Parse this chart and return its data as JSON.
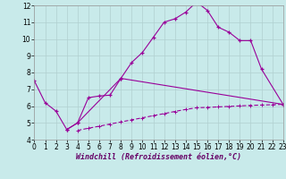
{
  "background_color": "#c8eaea",
  "grid_color": "#b0d0d0",
  "line_color": "#990099",
  "xlim": [
    0,
    23
  ],
  "ylim": [
    4,
    12
  ],
  "xticks": [
    0,
    1,
    2,
    3,
    4,
    5,
    6,
    7,
    8,
    9,
    10,
    11,
    12,
    13,
    14,
    15,
    16,
    17,
    18,
    19,
    20,
    21,
    22,
    23
  ],
  "yticks": [
    4,
    5,
    6,
    7,
    8,
    9,
    10,
    11,
    12
  ],
  "xlabel": "Windchill (Refroidissement éolien,°C)",
  "curve1_x": [
    0,
    1,
    2,
    3,
    4,
    5,
    6,
    7,
    8,
    9,
    10,
    11,
    12,
    13,
    14,
    15,
    16,
    17,
    18,
    19,
    20,
    21,
    23
  ],
  "curve1_y": [
    7.5,
    6.2,
    5.7,
    4.6,
    5.0,
    6.5,
    6.6,
    6.65,
    7.65,
    8.6,
    9.2,
    10.1,
    11.0,
    11.2,
    11.6,
    12.2,
    11.7,
    10.7,
    10.4,
    9.9,
    9.9,
    8.2,
    6.1
  ],
  "curve2_x": [
    3,
    4,
    8,
    23
  ],
  "curve2_y": [
    4.6,
    5.0,
    7.65,
    6.1
  ],
  "curve3_x": [
    4,
    5,
    6,
    7,
    8,
    9,
    10,
    11,
    12,
    13,
    14,
    15,
    16,
    17,
    18,
    19,
    20,
    21,
    22,
    23
  ],
  "curve3_y": [
    4.55,
    4.68,
    4.8,
    4.93,
    5.05,
    5.18,
    5.3,
    5.43,
    5.55,
    5.68,
    5.8,
    5.9,
    5.92,
    5.95,
    5.98,
    6.01,
    6.04,
    6.06,
    6.08,
    6.1
  ],
  "tick_fontsize": 5.5,
  "xlabel_fontsize": 6.0
}
